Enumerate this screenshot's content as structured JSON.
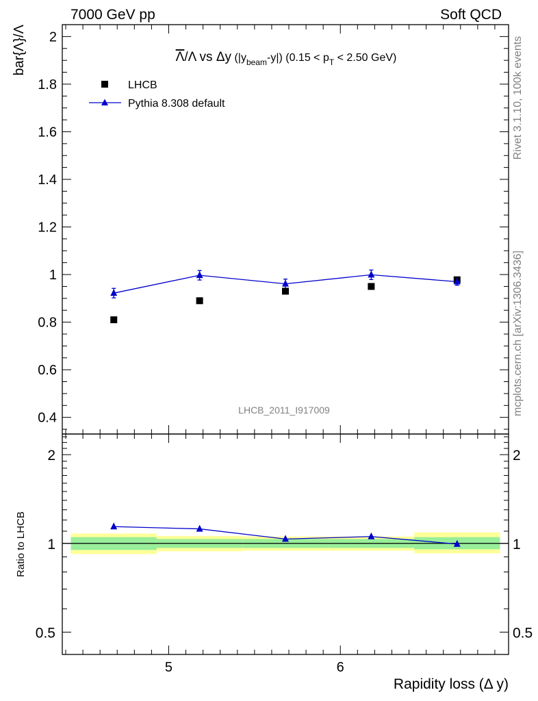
{
  "header": {
    "left": "7000 GeV pp",
    "right": "Soft QCD"
  },
  "side_texts": {
    "rivet": "Rivet 3.1.10,  100k events",
    "mcplots": "mcplots.cern.ch [arXiv:1306.3436]"
  },
  "chart_data": [
    {
      "type": "scatter",
      "title": {
        "lambda_bar": "Λ",
        "slash_lambda": "/Λ vs ",
        "delta_y": "Δy",
        "open": " (|y",
        "sub_beam": "beam",
        "mid": "-y|) (0.15 < p",
        "sub_T": "T",
        "close": " < 2.50 GeV)"
      },
      "ylabel": "bar{Λ}/Λ",
      "xlim": [
        4.38,
        6.98
      ],
      "ylim": [
        0.33,
        2.05
      ],
      "yticks": [
        "0.4",
        "0.6",
        "0.8",
        "1",
        "1.2",
        "1.4",
        "1.6",
        "1.8",
        "2"
      ],
      "analysis_label": "LHCB_2011_I917009",
      "legend": {
        "position": "top-left"
      },
      "series": [
        {
          "name": "LHCB",
          "marker": "square",
          "color": "#000000",
          "x": [
            4.68,
            5.18,
            5.68,
            6.18,
            6.68
          ],
          "y": [
            0.81,
            0.89,
            0.93,
            0.95,
            0.978
          ]
        },
        {
          "name": "Pythia 8.308 default",
          "marker": "triangle",
          "color": "#0000cc",
          "x": [
            4.68,
            5.18,
            5.68,
            6.18,
            6.68
          ],
          "y": [
            0.922,
            0.997,
            0.961,
            0.999,
            0.97
          ],
          "yerr": [
            0.02,
            0.02,
            0.02,
            0.02,
            0.015
          ]
        }
      ]
    },
    {
      "type": "line",
      "ylabel": "Ratio to LHCB",
      "xlabel": "Rapidity loss (Δ y)",
      "xlim": [
        4.38,
        6.98
      ],
      "ylim": [
        0.42,
        2.35
      ],
      "ylog": true,
      "xticks": [
        "5",
        "6"
      ],
      "yticks": [
        "0.5",
        "1",
        "2"
      ],
      "bands": [
        {
          "x0": 4.43,
          "x1": 4.93,
          "yellow": [
            0.92,
            1.08
          ],
          "green": [
            0.95,
            1.05
          ]
        },
        {
          "x0": 4.93,
          "x1": 5.43,
          "yellow": [
            0.94,
            1.06
          ],
          "green": [
            0.965,
            1.035
          ]
        },
        {
          "x0": 5.43,
          "x1": 5.93,
          "yellow": [
            0.945,
            1.055
          ],
          "green": [
            0.965,
            1.035
          ]
        },
        {
          "x0": 5.93,
          "x1": 6.43,
          "yellow": [
            0.945,
            1.055
          ],
          "green": [
            0.965,
            1.035
          ]
        },
        {
          "x0": 6.43,
          "x1": 6.93,
          "yellow": [
            0.925,
            1.09
          ],
          "green": [
            0.955,
            1.05
          ]
        }
      ],
      "series": [
        {
          "name": "Pythia 8.308 default",
          "color": "#0000cc",
          "x": [
            4.68,
            5.18,
            5.68,
            6.18,
            6.68
          ],
          "y": [
            1.14,
            1.12,
            1.035,
            1.055,
            0.995
          ]
        }
      ]
    }
  ]
}
